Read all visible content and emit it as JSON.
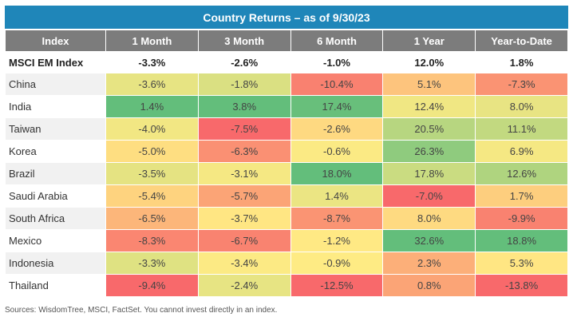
{
  "chart_data": {
    "type": "table",
    "title": "Country Returns – as of 9/30/23",
    "columns": [
      "Index",
      "1 Month",
      "3 Month",
      "6 Month",
      "1 Year",
      "Year-to-Date"
    ],
    "benchmark": {
      "name": "MSCI EM Index",
      "values": [
        "-3.3%",
        "-2.6%",
        "-1.0%",
        "12.0%",
        "1.8%"
      ]
    },
    "rows": [
      {
        "name": "China",
        "values": [
          "-3.6%",
          "-1.8%",
          "-10.4%",
          "5.1%",
          "-7.3%"
        ]
      },
      {
        "name": "India",
        "values": [
          "1.4%",
          "3.8%",
          "17.4%",
          "12.4%",
          "8.0%"
        ]
      },
      {
        "name": "Taiwan",
        "values": [
          "-4.0%",
          "-7.5%",
          "-2.6%",
          "20.5%",
          "11.1%"
        ]
      },
      {
        "name": "Korea",
        "values": [
          "-5.0%",
          "-6.3%",
          "-0.6%",
          "26.3%",
          "6.9%"
        ]
      },
      {
        "name": "Brazil",
        "values": [
          "-3.5%",
          "-3.1%",
          "18.0%",
          "17.8%",
          "12.6%"
        ]
      },
      {
        "name": "Saudi Arabia",
        "values": [
          "-5.4%",
          "-5.7%",
          "1.4%",
          "-7.0%",
          "1.7%"
        ]
      },
      {
        "name": "South Africa",
        "values": [
          "-6.5%",
          "-3.7%",
          "-8.7%",
          "8.0%",
          "-9.9%"
        ]
      },
      {
        "name": "Mexico",
        "values": [
          "-8.3%",
          "-6.7%",
          "-1.2%",
          "32.6%",
          "18.8%"
        ]
      },
      {
        "name": "Indonesia",
        "values": [
          "-3.3%",
          "-3.4%",
          "-0.9%",
          "2.3%",
          "5.3%"
        ]
      },
      {
        "name": "Thailand",
        "values": [
          "-9.4%",
          "-2.4%",
          "-12.5%",
          "0.8%",
          "-13.8%"
        ]
      }
    ]
  },
  "footer": {
    "source": "Sources: WisdomTree, MSCI, FactSet. You cannot invest directly in an index."
  },
  "colors": {
    "title_bg": "#1f86b9",
    "header_bg": "#7c7c7c",
    "low": "#f8696b",
    "mid": "#ffeb84",
    "high": "#63be7b"
  }
}
